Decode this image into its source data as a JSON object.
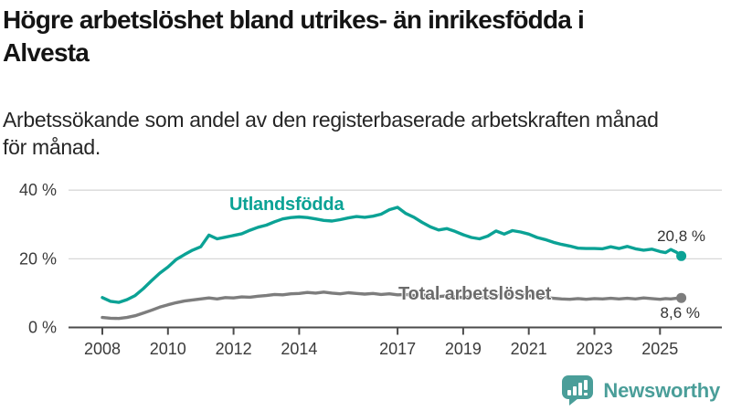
{
  "header": {
    "title_line1": "Högre arbetslöshet bland utrikes- än inrikesfödda i",
    "title_line2": "Alvesta",
    "subtitle_line1": "Arbetssökande som andel av den registerbaserade arbetskraften månad",
    "subtitle_line2": "för månad."
  },
  "footer": {
    "brand": "Newsworthy"
  },
  "colors": {
    "series_teal": "#0ba295",
    "series_gray": "#7d7d7d",
    "gray_label": "#6b6b6b",
    "grid": "#d8d8d8",
    "axis": "#4b4b4b",
    "tick_text": "#3b3b3b",
    "logo_teal": "#4a9e99"
  },
  "chart_data": {
    "type": "line",
    "title": "Högre arbetslöshet bland utrikes- än inrikesfödda i Alvesta",
    "subtitle": "Arbetssökande som andel av den registerbaserade arbetskraften månad för månad.",
    "unit": "%",
    "grid": "horizontal",
    "legend_position": "inline-labels",
    "ylim": [
      0,
      40
    ],
    "y_ticks": [
      {
        "value": 40,
        "label": "40 %"
      },
      {
        "value": 20,
        "label": "20 %"
      },
      {
        "value": 0,
        "label": "0 %"
      }
    ],
    "x_ticks": [
      2008,
      2010,
      2012,
      2014,
      2017,
      2019,
      2021,
      2023,
      2025
    ],
    "x_range": [
      2008,
      2025.65
    ],
    "x": [
      2008,
      2008.25,
      2008.5,
      2008.75,
      2009,
      2009.25,
      2009.5,
      2009.75,
      2010,
      2010.25,
      2010.5,
      2010.75,
      2011,
      2011.25,
      2011.5,
      2011.75,
      2012,
      2012.25,
      2012.5,
      2012.75,
      2013,
      2013.25,
      2013.5,
      2013.75,
      2014,
      2014.25,
      2014.5,
      2014.75,
      2015,
      2015.25,
      2015.5,
      2015.75,
      2016,
      2016.25,
      2016.5,
      2016.75,
      2017,
      2017.25,
      2017.5,
      2017.75,
      2018,
      2018.25,
      2018.5,
      2018.75,
      2019,
      2019.25,
      2019.5,
      2019.75,
      2020,
      2020.25,
      2020.5,
      2020.75,
      2021,
      2021.25,
      2021.5,
      2021.75,
      2022,
      2022.25,
      2022.5,
      2022.75,
      2023,
      2023.25,
      2023.5,
      2023.75,
      2024,
      2024.25,
      2024.5,
      2024.75,
      2025,
      2025.17,
      2025.33,
      2025.5,
      2025.65
    ],
    "series": [
      {
        "name": "Utlandsfödda",
        "color": "#0ba295",
        "end_label": "20,8 %",
        "end_value": 20.8,
        "values": [
          8.7,
          7.6,
          7.3,
          8.1,
          9.3,
          11.3,
          13.6,
          15.8,
          17.6,
          19.8,
          21.2,
          22.5,
          23.5,
          26.9,
          25.8,
          26.3,
          26.8,
          27.3,
          28.3,
          29.2,
          29.8,
          30.8,
          31.6,
          32.0,
          32.2,
          32.0,
          31.6,
          31.2,
          31.0,
          31.4,
          31.9,
          32.3,
          32.1,
          32.4,
          33.0,
          34.3,
          35.0,
          33.2,
          32.1,
          30.6,
          29.3,
          28.4,
          28.8,
          28.0,
          27.0,
          26.2,
          25.8,
          26.6,
          28.1,
          27.2,
          28.2,
          27.8,
          27.2,
          26.2,
          25.6,
          24.8,
          24.2,
          23.7,
          23.1,
          23.0,
          23.0,
          22.9,
          23.5,
          23.0,
          23.6,
          22.9,
          22.5,
          22.8,
          22.1,
          21.8,
          22.7,
          21.9,
          20.8
        ]
      },
      {
        "name": "Total arbetslöshet",
        "color": "#7d7d7d",
        "end_label": "8,6 %",
        "end_value": 8.6,
        "values": [
          2.9,
          2.7,
          2.6,
          2.9,
          3.4,
          4.2,
          5.0,
          5.9,
          6.6,
          7.2,
          7.7,
          8.0,
          8.3,
          8.6,
          8.3,
          8.7,
          8.6,
          8.9,
          8.8,
          9.1,
          9.3,
          9.6,
          9.5,
          9.8,
          9.9,
          10.2,
          10.0,
          10.3,
          10.0,
          9.8,
          10.1,
          9.9,
          9.7,
          9.9,
          9.6,
          9.8,
          9.5,
          9.6,
          9.3,
          9.5,
          9.1,
          9.0,
          9.2,
          8.9,
          8.7,
          8.9,
          8.6,
          8.8,
          9.0,
          9.6,
          9.8,
          9.5,
          9.2,
          9.0,
          8.7,
          8.5,
          8.3,
          8.2,
          8.4,
          8.2,
          8.4,
          8.3,
          8.5,
          8.3,
          8.5,
          8.3,
          8.6,
          8.4,
          8.2,
          8.4,
          8.3,
          8.5,
          8.6
        ]
      }
    ]
  }
}
